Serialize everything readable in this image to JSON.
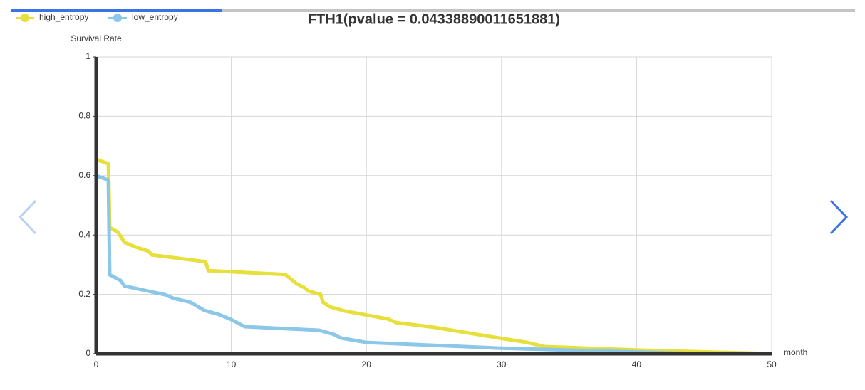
{
  "chart_data": {
    "type": "line",
    "title": "FTH1(pvalue = 0.04338890011651881)",
    "y_label": "Survival Rate",
    "x_label": "month",
    "xlim": [
      0,
      50
    ],
    "xticks": [
      0,
      10,
      20,
      30,
      40,
      50
    ],
    "ylim": [
      0,
      1
    ],
    "yticks": [
      0,
      0.2,
      0.4,
      0.6,
      0.8,
      1
    ],
    "grid": true,
    "legend": "top-left",
    "series": [
      {
        "name": "high_entropy",
        "color": "#e6df3c",
        "x": [
          0,
          0.9,
          0.95,
          1.0,
          1.6,
          2.1,
          2.9,
          3.9,
          4.1,
          8.1,
          8.3,
          14.0,
          14.8,
          15.4,
          15.7,
          16.6,
          16.8,
          17.3,
          18.4,
          21.6,
          22.2,
          25.0,
          29.8,
          31.9,
          33.2,
          40.3,
          50
        ],
        "values": [
          0.655,
          0.64,
          0.545,
          0.425,
          0.41,
          0.375,
          0.36,
          0.345,
          0.333,
          0.31,
          0.28,
          0.267,
          0.237,
          0.223,
          0.211,
          0.2,
          0.173,
          0.158,
          0.144,
          0.117,
          0.105,
          0.089,
          0.053,
          0.038,
          0.024,
          0.012,
          0
        ]
      },
      {
        "name": "low_entropy",
        "color": "#8ac7e8",
        "x": [
          0,
          0.9,
          1.0,
          1.8,
          2.1,
          5.1,
          5.7,
          7.0,
          8.0,
          9.1,
          10.0,
          11.0,
          16.5,
          17.6,
          18.1,
          20.0,
          29.8,
          35.1,
          44.6
        ],
        "values": [
          0.6,
          0.585,
          0.266,
          0.247,
          0.228,
          0.199,
          0.187,
          0.173,
          0.146,
          0.132,
          0.115,
          0.091,
          0.079,
          0.065,
          0.053,
          0.038,
          0.019,
          0.012,
          0
        ]
      }
    ]
  }
}
